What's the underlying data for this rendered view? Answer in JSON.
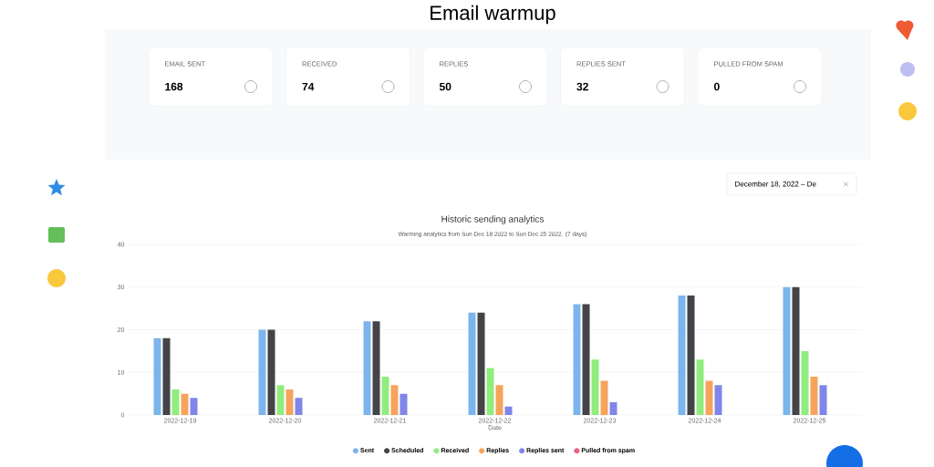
{
  "chart_data": [
    {
      "type": "other",
      "title": "Email warmup",
      "annotations": [
        "EMAIL SENT",
        "168",
        "RECEIVED",
        "74",
        "REPLIES",
        "50",
        "REPLIES SENT",
        "32",
        "PULLED FROM SPAM",
        "0",
        "December 18, 2022 – De"
      ]
    },
    {
      "type": "bar",
      "title": "Historic sending analytics",
      "subtitle": "Warming analytics from Sun Dec 18 2022 to Sun Dec 25 2022. (7 days)",
      "xlabel": "Date",
      "categories": [
        "2022-12-19",
        "2022-12-20",
        "2022-12-21",
        "2022-12-22",
        "2022-12-23",
        "2022-12-24",
        "2022-12-25"
      ],
      "series": [
        {
          "name": "Sent",
          "color": "#7cb5ec",
          "values": [
            18,
            20,
            22,
            24,
            26,
            28,
            30
          ]
        },
        {
          "name": "Scheduled",
          "color": "#434348",
          "values": [
            18,
            20,
            22,
            24,
            26,
            28,
            30
          ]
        },
        {
          "name": "Received",
          "color": "#90ed7d",
          "values": [
            6,
            7,
            9,
            11,
            13,
            13,
            15
          ]
        },
        {
          "name": "Replies",
          "color": "#f7a35c",
          "values": [
            5,
            6,
            7,
            7,
            8,
            8,
            9
          ]
        },
        {
          "name": "Replies sent",
          "color": "#8085e9",
          "values": [
            4,
            4,
            5,
            2,
            3,
            7,
            7
          ]
        },
        {
          "name": "Pulled from spam",
          "color": "#f15c80",
          "values": [
            0,
            0,
            0,
            0,
            0,
            0,
            0
          ]
        }
      ],
      "ylim": [
        0,
        40
      ],
      "yticks": [
        0,
        10,
        20,
        30,
        40
      ],
      "grid": "y",
      "legend": "bottom"
    }
  ]
}
